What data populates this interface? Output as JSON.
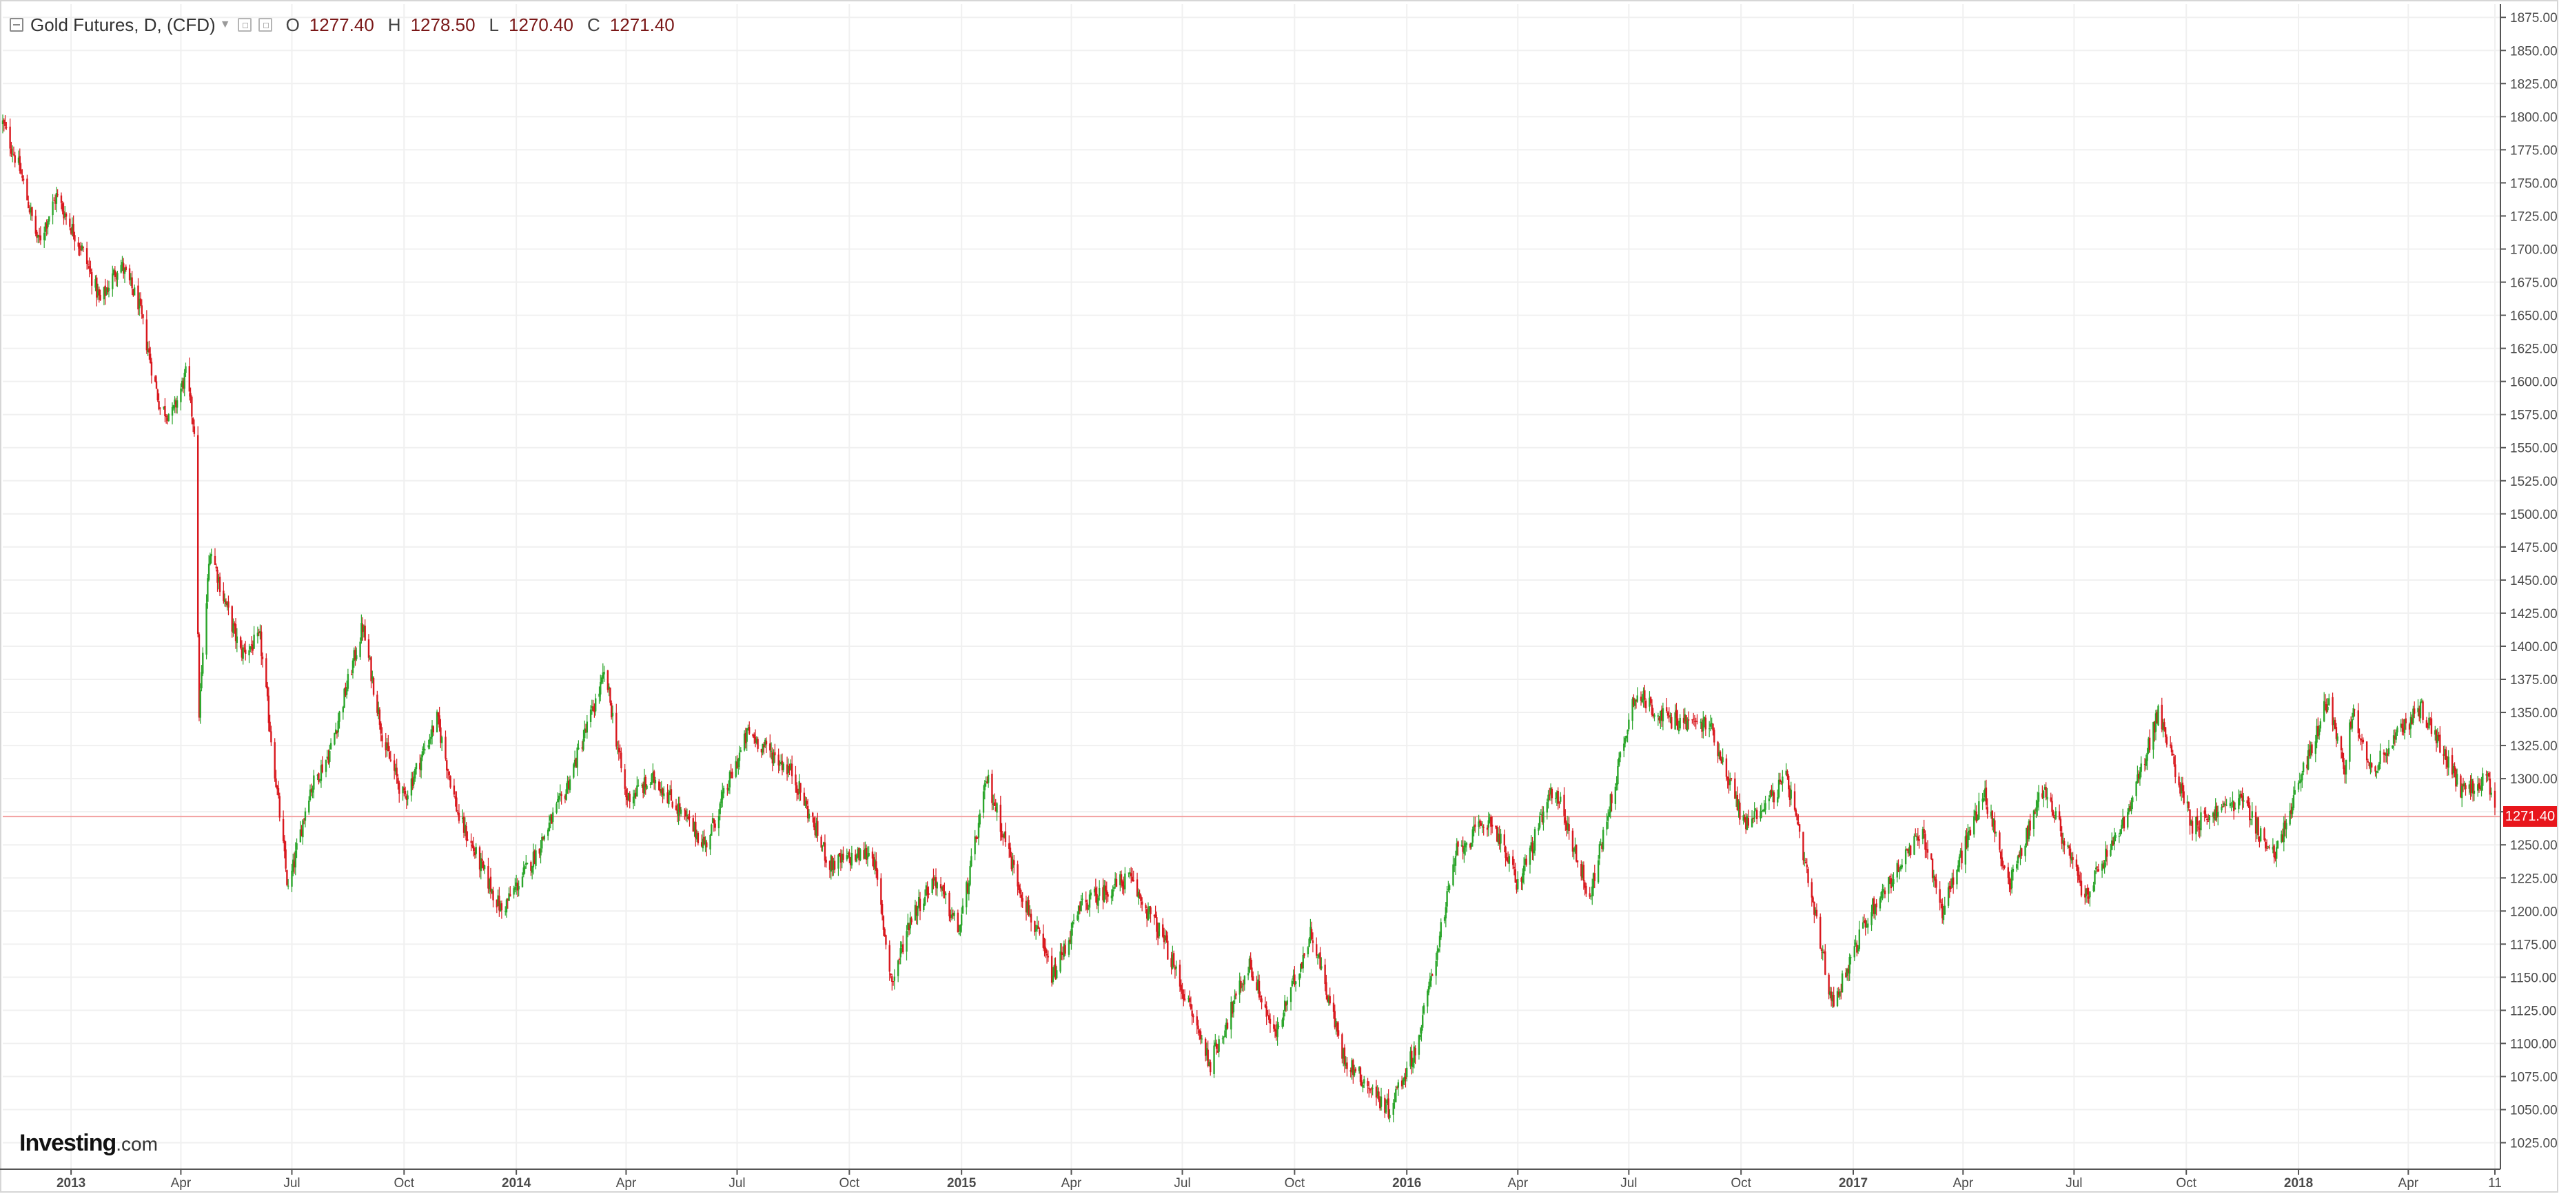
{
  "header": {
    "symbol": "Gold Futures, D, (CFD)",
    "open_label": "O",
    "open_value": "1277.40",
    "high_label": "H",
    "high_value": "1278.50",
    "low_label": "L",
    "low_value": "1270.40",
    "close_label": "C",
    "close_value": "1271.40"
  },
  "logo": {
    "main": "Investing",
    "suffix": ".com"
  },
  "price_tag": "1271.40",
  "colors": {
    "up": "#2aa52a",
    "down": "#d9181e",
    "grid": "#f0f0f0",
    "current_line": "#f3a0a0"
  },
  "chart_data": {
    "type": "candlestick",
    "title": "Gold Futures, D, (CFD)",
    "xlabel": "",
    "ylabel": "",
    "ylim": [
      1005,
      1885
    ],
    "y_ticks": [
      "1025.00",
      "1050.00",
      "1075.00",
      "1100.00",
      "1125.00",
      "1150.00",
      "1175.00",
      "1200.00",
      "1225.00",
      "1250.00",
      "1275.00",
      "1300.00",
      "1325.00",
      "1350.00",
      "1375.00",
      "1400.00",
      "1425.00",
      "1450.00",
      "1475.00",
      "1500.00",
      "1525.00",
      "1550.00",
      "1575.00",
      "1600.00",
      "1625.00",
      "1650.00",
      "1675.00",
      "1700.00",
      "1725.00",
      "1750.00",
      "1775.00",
      "1800.00",
      "1825.00",
      "1850.00",
      "1875.00"
    ],
    "x_range": [
      "2012-11-06",
      "2018-06-11"
    ],
    "x_ticks": [
      {
        "label": "2013",
        "date": "2013-01-01",
        "bold": true
      },
      {
        "label": "Apr",
        "date": "2013-04-01",
        "bold": false
      },
      {
        "label": "Jul",
        "date": "2013-07-01",
        "bold": false
      },
      {
        "label": "Oct",
        "date": "2013-10-01",
        "bold": false
      },
      {
        "label": "2014",
        "date": "2014-01-01",
        "bold": true
      },
      {
        "label": "Apr",
        "date": "2014-04-01",
        "bold": false
      },
      {
        "label": "Jul",
        "date": "2014-07-01",
        "bold": false
      },
      {
        "label": "Oct",
        "date": "2014-10-01",
        "bold": false
      },
      {
        "label": "2015",
        "date": "2015-01-01",
        "bold": true
      },
      {
        "label": "Apr",
        "date": "2015-04-01",
        "bold": false
      },
      {
        "label": "Jul",
        "date": "2015-07-01",
        "bold": false
      },
      {
        "label": "Oct",
        "date": "2015-10-01",
        "bold": false
      },
      {
        "label": "2016",
        "date": "2016-01-01",
        "bold": true
      },
      {
        "label": "Apr",
        "date": "2016-04-01",
        "bold": false
      },
      {
        "label": "Jul",
        "date": "2016-07-01",
        "bold": false
      },
      {
        "label": "Oct",
        "date": "2016-10-01",
        "bold": false
      },
      {
        "label": "2017",
        "date": "2017-01-01",
        "bold": true
      },
      {
        "label": "Apr",
        "date": "2017-04-01",
        "bold": false
      },
      {
        "label": "Jul",
        "date": "2017-07-01",
        "bold": false
      },
      {
        "label": "Oct",
        "date": "2017-10-01",
        "bold": false
      },
      {
        "label": "2018",
        "date": "2018-01-01",
        "bold": true
      },
      {
        "label": "Apr",
        "date": "2018-04-01",
        "bold": false
      },
      {
        "label": "11",
        "date": "2018-06-11",
        "bold": false
      }
    ],
    "current_price": 1271.4,
    "grid": true,
    "series": [
      {
        "price_path": [
          [
            "2012-11-06",
            1795
          ],
          [
            "2012-11-20",
            1760
          ],
          [
            "2012-12-05",
            1705
          ],
          [
            "2012-12-20",
            1740
          ],
          [
            "2013-01-10",
            1700
          ],
          [
            "2013-01-25",
            1660
          ],
          [
            "2013-02-10",
            1690
          ],
          [
            "2013-02-25",
            1660
          ],
          [
            "2013-03-15",
            1580
          ],
          [
            "2013-03-25",
            1575
          ],
          [
            "2013-04-05",
            1605
          ],
          [
            "2013-04-12",
            1565
          ],
          [
            "2013-04-16",
            1350
          ],
          [
            "2013-04-25",
            1475
          ],
          [
            "2013-05-05",
            1440
          ],
          [
            "2013-05-20",
            1395
          ],
          [
            "2013-06-05",
            1405
          ],
          [
            "2013-06-28",
            1215
          ],
          [
            "2013-07-15",
            1290
          ],
          [
            "2013-08-01",
            1320
          ],
          [
            "2013-08-28",
            1415
          ],
          [
            "2013-09-15",
            1325
          ],
          [
            "2013-10-01",
            1285
          ],
          [
            "2013-10-28",
            1345
          ],
          [
            "2013-11-15",
            1270
          ],
          [
            "2013-12-20",
            1200
          ],
          [
            "2014-01-15",
            1240
          ],
          [
            "2014-02-10",
            1290
          ],
          [
            "2014-03-15",
            1380
          ],
          [
            "2014-04-01",
            1285
          ],
          [
            "2014-04-25",
            1300
          ],
          [
            "2014-06-05",
            1250
          ],
          [
            "2014-07-10",
            1335
          ],
          [
            "2014-08-15",
            1305
          ],
          [
            "2014-09-15",
            1235
          ],
          [
            "2014-10-20",
            1245
          ],
          [
            "2014-11-05",
            1145
          ],
          [
            "2014-11-20",
            1195
          ],
          [
            "2014-12-10",
            1225
          ],
          [
            "2014-12-30",
            1185
          ],
          [
            "2015-01-22",
            1300
          ],
          [
            "2015-02-15",
            1225
          ],
          [
            "2015-03-17",
            1150
          ],
          [
            "2015-04-10",
            1205
          ],
          [
            "2015-05-18",
            1225
          ],
          [
            "2015-06-15",
            1180
          ],
          [
            "2015-07-24",
            1085
          ],
          [
            "2015-08-25",
            1160
          ],
          [
            "2015-09-15",
            1105
          ],
          [
            "2015-10-15",
            1185
          ],
          [
            "2015-11-10",
            1090
          ],
          [
            "2015-12-17",
            1050
          ],
          [
            "2016-01-10",
            1100
          ],
          [
            "2016-02-11",
            1245
          ],
          [
            "2016-03-10",
            1270
          ],
          [
            "2016-04-01",
            1220
          ],
          [
            "2016-05-01",
            1295
          ],
          [
            "2016-05-30",
            1210
          ],
          [
            "2016-06-25",
            1320
          ],
          [
            "2016-07-06",
            1365
          ],
          [
            "2016-08-01",
            1345
          ],
          [
            "2016-09-06",
            1340
          ],
          [
            "2016-10-04",
            1265
          ],
          [
            "2016-11-08",
            1300
          ],
          [
            "2016-12-15",
            1130
          ],
          [
            "2017-01-15",
            1200
          ],
          [
            "2017-02-27",
            1260
          ],
          [
            "2017-03-15",
            1200
          ],
          [
            "2017-04-18",
            1290
          ],
          [
            "2017-05-09",
            1220
          ],
          [
            "2017-06-06",
            1295
          ],
          [
            "2017-07-10",
            1210
          ],
          [
            "2017-08-15",
            1275
          ],
          [
            "2017-09-08",
            1350
          ],
          [
            "2017-10-06",
            1265
          ],
          [
            "2017-11-15",
            1285
          ],
          [
            "2017-12-12",
            1240
          ],
          [
            "2018-01-25",
            1360
          ],
          [
            "2018-02-08",
            1310
          ],
          [
            "2018-02-15",
            1355
          ],
          [
            "2018-03-01",
            1305
          ],
          [
            "2018-04-11",
            1355
          ],
          [
            "2018-05-15",
            1290
          ],
          [
            "2018-06-05",
            1300
          ],
          [
            "2018-06-11",
            1271.4
          ]
        ]
      }
    ]
  }
}
